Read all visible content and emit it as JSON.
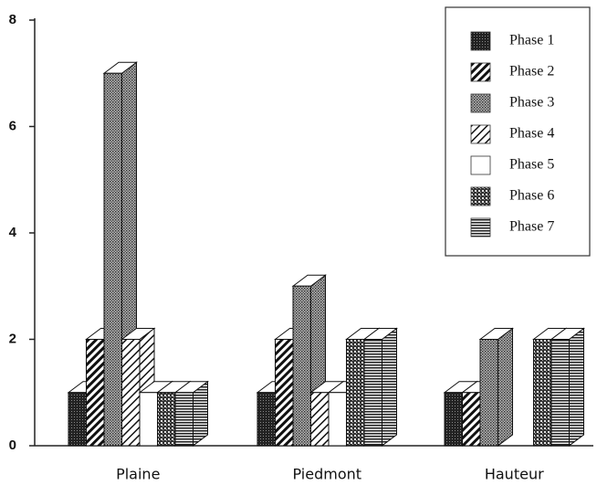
{
  "chart_data": {
    "type": "bar3d",
    "categories": [
      "Plaine",
      "Piedmont",
      "Hauteur"
    ],
    "series": [
      {
        "name": "Phase 1",
        "pattern": "dark",
        "values": [
          1,
          1,
          1
        ]
      },
      {
        "name": "Phase 2",
        "pattern": "diag",
        "values": [
          2,
          2,
          1
        ]
      },
      {
        "name": "Phase 3",
        "pattern": "grey",
        "values": [
          7,
          3,
          2
        ]
      },
      {
        "name": "Phase 4",
        "pattern": "lightdiag",
        "values": [
          2,
          1,
          0
        ]
      },
      {
        "name": "Phase 5",
        "pattern": "white",
        "values": [
          1,
          1,
          0
        ]
      },
      {
        "name": "Phase 6",
        "pattern": "checker",
        "values": [
          1,
          2,
          2
        ]
      },
      {
        "name": "Phase 7",
        "pattern": "hlines",
        "values": [
          1,
          2,
          2
        ]
      }
    ],
    "ylim": [
      0,
      8
    ],
    "yticks": [
      0,
      2,
      4,
      6,
      8
    ],
    "legend": "upper right"
  }
}
